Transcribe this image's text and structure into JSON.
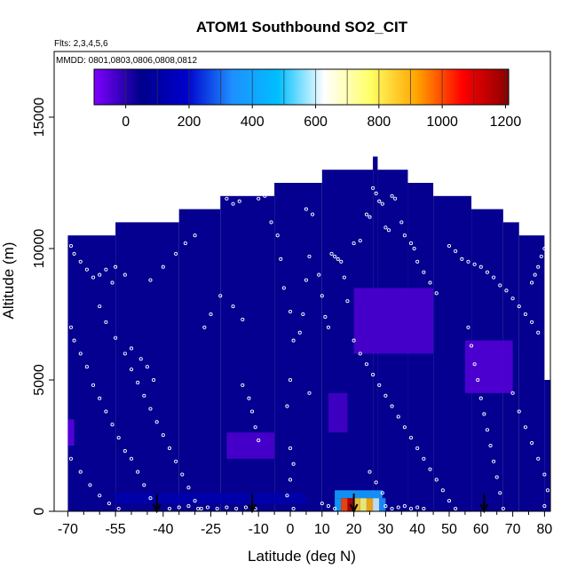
{
  "chart_data": {
    "type": "heatmap",
    "title": "ATOM1 Southbound SO2_CIT",
    "subtitle_flights": "Flts: 2,3,4,5,6",
    "subtitle_dates": "MMDD: 0801,0803,0806,0808,0812",
    "xlabel": "Latitude (deg N)",
    "ylabel": "Altitude (m)",
    "xlim": [
      -72,
      85
    ],
    "ylim": [
      0,
      17500
    ],
    "x_ticks": [
      -70,
      -55,
      -40,
      -25,
      -10,
      0,
      10,
      20,
      30,
      40,
      50,
      60,
      70,
      80
    ],
    "x_tick_labels": [
      "-70",
      "-55",
      "-40",
      "-25",
      "-10",
      "0",
      "10",
      "20",
      "30",
      "40",
      "50",
      "60",
      "70",
      "80"
    ],
    "y_ticks": [
      0,
      5000,
      10000,
      15000
    ],
    "y_tick_labels": [
      "0",
      "5000",
      "10000",
      "15000"
    ],
    "colorbar": {
      "range": [
        -100,
        1210
      ],
      "ticks": [
        0,
        200,
        400,
        600,
        800,
        1000,
        1200
      ],
      "tick_labels": [
        "0",
        "200",
        "400",
        "600",
        "800",
        "1000",
        "1200"
      ],
      "colors": [
        "#7f00ff",
        "#00008b",
        "#0000cd",
        "#1e90ff",
        "#00bfff",
        "#ffffff",
        "#ffff66",
        "#ffa500",
        "#ff0000",
        "#8b0000"
      ]
    },
    "top_profile": [
      {
        "x0": -70,
        "x1": -55,
        "top": 10500
      },
      {
        "x0": -55,
        "x1": -35,
        "top": 11000
      },
      {
        "x0": -35,
        "x1": -22,
        "top": 11500
      },
      {
        "x0": -22,
        "x1": -5,
        "top": 12000
      },
      {
        "x0": -5,
        "x1": 10,
        "top": 12500
      },
      {
        "x0": 10,
        "x1": 26,
        "top": 13000
      },
      {
        "x0": 26,
        "x1": 27.5,
        "top": 13500
      },
      {
        "x0": 27.5,
        "x1": 37,
        "top": 13000
      },
      {
        "x0": 37,
        "x1": 45,
        "top": 12500
      },
      {
        "x0": 45,
        "x1": 57,
        "top": 12000
      },
      {
        "x0": 57,
        "x1": 67,
        "top": 11500
      },
      {
        "x0": 67,
        "x1": 72,
        "top": 11000
      },
      {
        "x0": 72,
        "x1": 80,
        "top": 10500
      },
      {
        "x0": 80,
        "x1": 82,
        "top": 5000
      }
    ],
    "background_value": 40,
    "highlights": [
      {
        "x0": -70,
        "x1": -68,
        "y0": 2500,
        "y1": 3500,
        "value": -60
      },
      {
        "x0": -20,
        "x1": -5,
        "y0": 2000,
        "y1": 3000,
        "value": -40
      },
      {
        "x0": 20,
        "x1": 45,
        "y0": 6000,
        "y1": 8500,
        "value": -40
      },
      {
        "x0": 55,
        "x1": 70,
        "y0": 4500,
        "y1": 6500,
        "value": -50
      },
      {
        "x0": 12,
        "x1": 18,
        "y0": 3000,
        "y1": 4500,
        "value": -30
      },
      {
        "x0": -55,
        "x1": 5,
        "y0": 300,
        "y1": 700,
        "value": 120
      },
      {
        "x0": 14,
        "x1": 29,
        "y0": 500,
        "y1": 800,
        "value": 380
      },
      {
        "x0": 14,
        "x1": 16,
        "y0": 0,
        "y1": 500,
        "value": 400
      },
      {
        "x0": 16,
        "x1": 18,
        "y0": 0,
        "y1": 500,
        "value": 1000
      },
      {
        "x0": 18,
        "x1": 20,
        "y0": 0,
        "y1": 500,
        "value": 1150
      },
      {
        "x0": 20,
        "x1": 22,
        "y0": 0,
        "y1": 500,
        "value": 850
      },
      {
        "x0": 22,
        "x1": 24,
        "y0": 0,
        "y1": 500,
        "value": 760
      },
      {
        "x0": 24,
        "x1": 26,
        "y0": 0,
        "y1": 500,
        "value": 900
      },
      {
        "x0": 26,
        "x1": 28,
        "y0": 0,
        "y1": 500,
        "value": 600
      },
      {
        "x0": 28,
        "x1": 30,
        "y0": 0,
        "y1": 500,
        "value": 350
      }
    ],
    "arrows_lat": [
      -42,
      -12,
      20,
      61
    ],
    "sample_points": [
      [
        -69,
        10100
      ],
      [
        -68,
        9800
      ],
      [
        -66,
        9500
      ],
      [
        -64,
        9200
      ],
      [
        -62,
        8900
      ],
      [
        -60,
        9000
      ],
      [
        -58,
        9200
      ],
      [
        -56,
        8700
      ],
      [
        -55,
        9300
      ],
      [
        -52,
        9000
      ],
      [
        -69,
        7000
      ],
      [
        -68,
        6500
      ],
      [
        -66,
        6000
      ],
      [
        -64,
        5500
      ],
      [
        -62,
        4800
      ],
      [
        -60,
        4300
      ],
      [
        -58,
        3800
      ],
      [
        -56,
        3300
      ],
      [
        -54,
        2800
      ],
      [
        -52,
        2300
      ],
      [
        -69,
        2000
      ],
      [
        -66,
        1500
      ],
      [
        -63,
        1000
      ],
      [
        -60,
        600
      ],
      [
        -57,
        300
      ],
      [
        -54,
        100
      ],
      [
        -50,
        2000
      ],
      [
        -48,
        1500
      ],
      [
        -46,
        1000
      ],
      [
        -44,
        500
      ],
      [
        -60,
        7800
      ],
      [
        -58,
        7200
      ],
      [
        -55,
        6600
      ],
      [
        -52,
        6000
      ],
      [
        -50,
        5400
      ],
      [
        -48,
        4900
      ],
      [
        -46,
        4400
      ],
      [
        -44,
        3900
      ],
      [
        -42,
        3400
      ],
      [
        -40,
        2900
      ],
      [
        -38,
        2400
      ],
      [
        -36,
        1900
      ],
      [
        -34,
        1400
      ],
      [
        -32,
        900
      ],
      [
        -30,
        400
      ],
      [
        -28,
        100
      ],
      [
        -50,
        6200
      ],
      [
        -47,
        5800
      ],
      [
        -45,
        5500
      ],
      [
        -43,
        5000
      ],
      [
        -38,
        100
      ],
      [
        -35,
        150
      ],
      [
        -32,
        200
      ],
      [
        -29,
        100
      ],
      [
        -26,
        150
      ],
      [
        -23,
        100
      ],
      [
        -20,
        150
      ],
      [
        -17,
        100
      ],
      [
        -14,
        150
      ],
      [
        -11,
        100
      ],
      [
        -10,
        11900
      ],
      [
        -8,
        12000
      ],
      [
        -6,
        11000
      ],
      [
        -4,
        10500
      ],
      [
        -3,
        9600
      ],
      [
        -2,
        8500
      ],
      [
        0,
        7600
      ],
      [
        1,
        6500
      ],
      [
        0,
        5000
      ],
      [
        -1,
        4000
      ],
      [
        0,
        2400
      ],
      [
        1,
        1800
      ],
      [
        0,
        1200
      ],
      [
        -1,
        600
      ],
      [
        1,
        100
      ],
      [
        -15,
        4800
      ],
      [
        -13,
        4300
      ],
      [
        -12,
        3800
      ],
      [
        -11,
        3200
      ],
      [
        -10,
        2700
      ],
      [
        -20,
        11900
      ],
      [
        -18,
        11700
      ],
      [
        -16,
        11800
      ],
      [
        5,
        11500
      ],
      [
        7,
        11300
      ],
      [
        6,
        9700
      ],
      [
        5,
        8800
      ],
      [
        4,
        7500
      ],
      [
        3,
        6800
      ],
      [
        6,
        4500
      ],
      [
        9,
        9000
      ],
      [
        10,
        8200
      ],
      [
        11,
        7400
      ],
      [
        12,
        7000
      ],
      [
        13,
        9800
      ],
      [
        14,
        9700
      ],
      [
        15,
        9600
      ],
      [
        16,
        9500
      ],
      [
        17,
        8900
      ],
      [
        18,
        8000
      ],
      [
        20,
        10200
      ],
      [
        22,
        10300
      ],
      [
        24,
        11300
      ],
      [
        25,
        11200
      ],
      [
        26,
        12300
      ],
      [
        27,
        12100
      ],
      [
        28,
        11800
      ],
      [
        29,
        11700
      ],
      [
        30,
        10800
      ],
      [
        31,
        10700
      ],
      [
        32,
        12000
      ],
      [
        33,
        11900
      ],
      [
        35,
        11000
      ],
      [
        36,
        10500
      ],
      [
        38,
        10200
      ],
      [
        39,
        10000
      ],
      [
        40,
        9500
      ],
      [
        42,
        9100
      ],
      [
        44,
        8700
      ],
      [
        46,
        8300
      ],
      [
        20,
        6500
      ],
      [
        22,
        6000
      ],
      [
        24,
        5600
      ],
      [
        26,
        5200
      ],
      [
        28,
        4800
      ],
      [
        30,
        4400
      ],
      [
        32,
        4000
      ],
      [
        34,
        3600
      ],
      [
        36,
        3200
      ],
      [
        38,
        2800
      ],
      [
        40,
        2400
      ],
      [
        42,
        2000
      ],
      [
        44,
        1600
      ],
      [
        46,
        1200
      ],
      [
        48,
        800
      ],
      [
        50,
        400
      ],
      [
        52,
        100
      ],
      [
        25,
        1500
      ],
      [
        27,
        1100
      ],
      [
        29,
        700
      ],
      [
        50,
        10100
      ],
      [
        52,
        9900
      ],
      [
        54,
        9600
      ],
      [
        56,
        9500
      ],
      [
        58,
        9400
      ],
      [
        60,
        9300
      ],
      [
        62,
        9100
      ],
      [
        64,
        8900
      ],
      [
        66,
        8600
      ],
      [
        68,
        8400
      ],
      [
        70,
        8100
      ],
      [
        72,
        7800
      ],
      [
        74,
        7500
      ],
      [
        76,
        7200
      ],
      [
        78,
        6800
      ],
      [
        80,
        10000
      ],
      [
        79,
        9700
      ],
      [
        78,
        9300
      ],
      [
        77,
        9000
      ],
      [
        76,
        8700
      ],
      [
        56,
        7000
      ],
      [
        57,
        6300
      ],
      [
        58,
        5600
      ],
      [
        59,
        5000
      ],
      [
        60,
        4300
      ],
      [
        61,
        3700
      ],
      [
        62,
        3100
      ],
      [
        63,
        2500
      ],
      [
        64,
        1900
      ],
      [
        65,
        1300
      ],
      [
        66,
        700
      ],
      [
        67,
        100
      ],
      [
        70,
        4500
      ],
      [
        72,
        3800
      ],
      [
        74,
        3200
      ],
      [
        76,
        2600
      ],
      [
        78,
        2000
      ],
      [
        80,
        1400
      ],
      [
        81,
        800
      ],
      [
        80,
        200
      ],
      [
        10,
        300
      ],
      [
        12,
        200
      ],
      [
        14,
        100
      ],
      [
        30,
        200
      ],
      [
        32,
        100
      ],
      [
        34,
        150
      ],
      [
        36,
        200
      ],
      [
        38,
        100
      ],
      [
        40,
        150
      ],
      [
        42,
        100
      ],
      [
        -25,
        7500
      ],
      [
        -27,
        7000
      ],
      [
        -22,
        8200
      ],
      [
        -18,
        7800
      ],
      [
        -15,
        7300
      ],
      [
        -30,
        10500
      ],
      [
        -33,
        10200
      ],
      [
        -36,
        9800
      ],
      [
        -40,
        9300
      ],
      [
        -44,
        8800
      ]
    ]
  }
}
